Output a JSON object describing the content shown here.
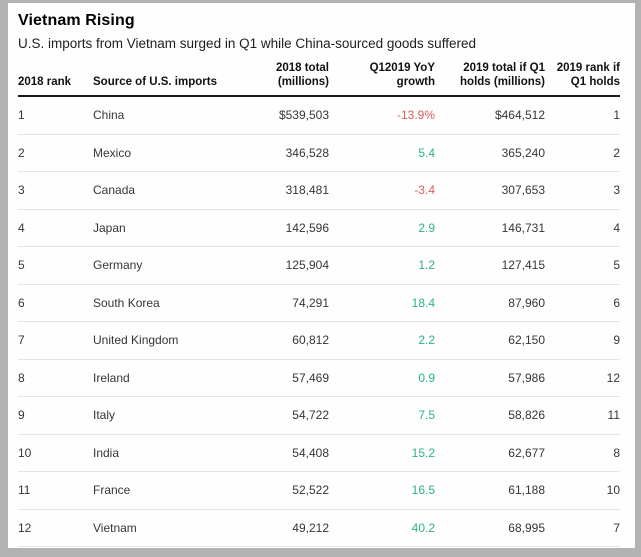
{
  "chart_data": {
    "type": "table",
    "title": "Vietnam Rising",
    "subtitle": "U.S. imports from Vietnam surged in Q1 while China-sourced goods suffered",
    "columns": [
      {
        "label": "2018 rank",
        "align": "left"
      },
      {
        "label": "Source of U.S. imports",
        "align": "left"
      },
      {
        "label": "2018 total\n(millions)",
        "align": "right"
      },
      {
        "label": "Q12019 YoY\ngrowth",
        "align": "right"
      },
      {
        "label": "2019 total if Q1\nholds (millions)",
        "align": "right"
      },
      {
        "label": "2019 rank if\nQ1 holds",
        "align": "right"
      }
    ],
    "rows": [
      {
        "rank_2018": "1",
        "source": "China",
        "total_2018": "$539,503",
        "growth": "-13.9%",
        "total_2019": "$464,512",
        "rank_2019": "1"
      },
      {
        "rank_2018": "2",
        "source": "Mexico",
        "total_2018": "346,528",
        "growth": "5.4",
        "total_2019": "365,240",
        "rank_2019": "2"
      },
      {
        "rank_2018": "3",
        "source": "Canada",
        "total_2018": "318,481",
        "growth": "-3.4",
        "total_2019": "307,653",
        "rank_2019": "3"
      },
      {
        "rank_2018": "4",
        "source": "Japan",
        "total_2018": "142,596",
        "growth": "2.9",
        "total_2019": "146,731",
        "rank_2019": "4"
      },
      {
        "rank_2018": "5",
        "source": "Germany",
        "total_2018": "125,904",
        "growth": "1.2",
        "total_2019": "127,415",
        "rank_2019": "5"
      },
      {
        "rank_2018": "6",
        "source": "South Korea",
        "total_2018": "74,291",
        "growth": "18.4",
        "total_2019": "87,960",
        "rank_2019": "6"
      },
      {
        "rank_2018": "7",
        "source": "United Kingdom",
        "total_2018": "60,812",
        "growth": "2.2",
        "total_2019": "62,150",
        "rank_2019": "9"
      },
      {
        "rank_2018": "8",
        "source": "Ireland",
        "total_2018": "57,469",
        "growth": "0.9",
        "total_2019": "57,986",
        "rank_2019": "12"
      },
      {
        "rank_2018": "9",
        "source": "Italy",
        "total_2018": "54,722",
        "growth": "7.5",
        "total_2019": "58,826",
        "rank_2019": "11"
      },
      {
        "rank_2018": "10",
        "source": "India",
        "total_2018": "54,408",
        "growth": "15.2",
        "total_2019": "62,677",
        "rank_2019": "8"
      },
      {
        "rank_2018": "11",
        "source": "France",
        "total_2018": "52,522",
        "growth": "16.5",
        "total_2019": "61,188",
        "rank_2019": "10"
      },
      {
        "rank_2018": "12",
        "source": "Vietnam",
        "total_2018": "49,212",
        "growth": "40.2",
        "total_2019": "68,995",
        "rank_2019": "7"
      }
    ],
    "colors": {
      "positive_growth": "#2fb286",
      "negative_growth": "#d9605b",
      "header_rule": "#1a1a1a",
      "row_divider": "#e4e4e4",
      "frame": "#b2b2b2",
      "panel_background": "#fefefe"
    },
    "layout_hints": {
      "grid": "horizontal row dividers only",
      "legend": "none"
    }
  }
}
